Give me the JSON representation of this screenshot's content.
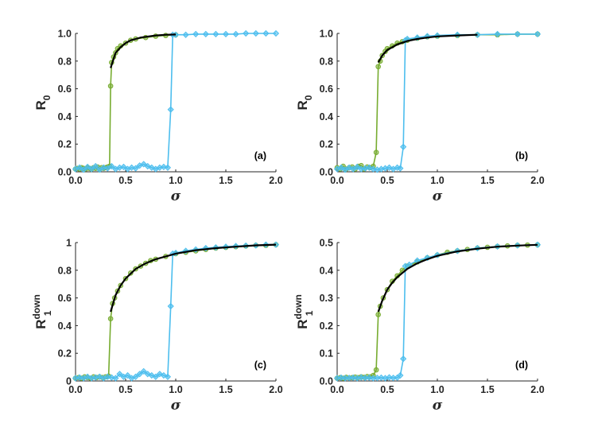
{
  "colors": {
    "green": "#77AC30",
    "blue": "#4DBEEE",
    "theory": "#000000",
    "axis": "#262626"
  },
  "chart_data": [
    {
      "type": "line",
      "panel_label": "(a)",
      "xlabel": "σ",
      "ylabel": {
        "base": "R",
        "sub": "0",
        "sup": ""
      },
      "xlim": [
        0,
        2
      ],
      "ylim": [
        0,
        1
      ],
      "xticks": [
        "0.0",
        "0.5",
        "1.0",
        "1.5",
        "2.0"
      ],
      "yticks": [
        "0.0",
        "0.2",
        "0.4",
        "0.6",
        "0.8",
        "1.0"
      ],
      "grid": false,
      "series": [
        {
          "color": "green",
          "marker": "circle",
          "x": [
            0,
            0.02,
            0.04,
            0.06,
            0.08,
            0.1,
            0.12,
            0.14,
            0.16,
            0.18,
            0.2,
            0.22,
            0.24,
            0.26,
            0.28,
            0.3,
            0.32,
            0.34,
            0.35,
            0.36,
            0.38,
            0.4,
            0.42,
            0.45,
            0.5,
            0.55,
            0.6,
            0.7,
            0.8,
            0.9,
            1.0
          ],
          "y": [
            0.02,
            0.025,
            0.02,
            0.03,
            0.025,
            0.02,
            0.03,
            0.025,
            0.02,
            0.03,
            0.025,
            0.035,
            0.02,
            0.03,
            0.025,
            0.03,
            0.035,
            0.04,
            0.62,
            0.79,
            0.83,
            0.86,
            0.89,
            0.91,
            0.93,
            0.95,
            0.96,
            0.97,
            0.98,
            0.985,
            0.99
          ]
        },
        {
          "color": "blue",
          "marker": "diamond",
          "x": [
            0,
            0.04,
            0.08,
            0.12,
            0.16,
            0.2,
            0.24,
            0.28,
            0.32,
            0.36,
            0.4,
            0.44,
            0.48,
            0.52,
            0.56,
            0.6,
            0.64,
            0.68,
            0.72,
            0.76,
            0.8,
            0.84,
            0.88,
            0.92,
            0.95,
            0.97,
            1.0,
            1.1,
            1.2,
            1.3,
            1.4,
            1.5,
            1.6,
            1.7,
            1.8,
            1.9,
            2.0
          ],
          "y": [
            0.02,
            0.03,
            0.015,
            0.035,
            0.02,
            0.04,
            0.015,
            0.03,
            0.025,
            0.04,
            0.02,
            0.03,
            0.035,
            0.02,
            0.03,
            0.025,
            0.045,
            0.055,
            0.04,
            0.03,
            0.02,
            0.03,
            0.035,
            0.03,
            0.45,
            0.99,
            0.99,
            0.99,
            0.995,
            0.995,
            0.995,
            0.995,
            0.995,
            1.0,
            1.0,
            1.0,
            1.0
          ]
        },
        {
          "color": "theory",
          "marker": "none",
          "x": [
            0.35,
            0.4,
            0.45,
            0.5,
            0.55,
            0.6,
            0.65,
            0.7,
            0.8,
            0.9,
            1.0
          ],
          "y": [
            0.75,
            0.86,
            0.9,
            0.93,
            0.95,
            0.96,
            0.97,
            0.975,
            0.985,
            0.99,
            0.992
          ]
        }
      ]
    },
    {
      "type": "line",
      "panel_label": "(b)",
      "xlabel": "σ",
      "ylabel": {
        "base": "R",
        "sub": "0",
        "sup": ""
      },
      "xlim": [
        0,
        2
      ],
      "ylim": [
        0,
        1
      ],
      "xticks": [
        "0.0",
        "0.5",
        "1.0",
        "1.5",
        "2.0"
      ],
      "yticks": [
        "0.0",
        "0.2",
        "0.4",
        "0.6",
        "0.8",
        "1.0"
      ],
      "grid": false,
      "series": [
        {
          "color": "green",
          "marker": "circle",
          "x": [
            0,
            0.03,
            0.06,
            0.09,
            0.12,
            0.15,
            0.18,
            0.21,
            0.24,
            0.27,
            0.3,
            0.33,
            0.36,
            0.39,
            0.41,
            0.43,
            0.45,
            0.48,
            0.5,
            0.55,
            0.6,
            0.65,
            0.7,
            0.8,
            0.9,
            1.0,
            1.2,
            1.4,
            1.6,
            1.8,
            2.0
          ],
          "y": [
            0.03,
            0.02,
            0.04,
            0.02,
            0.03,
            0.035,
            0.02,
            0.04,
            0.045,
            0.02,
            0.035,
            0.03,
            0.04,
            0.14,
            0.76,
            0.8,
            0.84,
            0.87,
            0.89,
            0.91,
            0.93,
            0.94,
            0.95,
            0.965,
            0.975,
            0.98,
            0.985,
            0.99,
            0.99,
            0.995,
            0.995
          ]
        },
        {
          "color": "blue",
          "marker": "diamond",
          "x": [
            0,
            0.04,
            0.08,
            0.12,
            0.16,
            0.2,
            0.24,
            0.28,
            0.32,
            0.36,
            0.4,
            0.44,
            0.48,
            0.52,
            0.56,
            0.6,
            0.63,
            0.66,
            0.68,
            0.7,
            0.8,
            0.9,
            1.0,
            1.2,
            1.4,
            1.6,
            1.8,
            2.0
          ],
          "y": [
            0.02,
            0.03,
            0.015,
            0.03,
            0.02,
            0.035,
            0.02,
            0.025,
            0.03,
            0.02,
            0.015,
            0.02,
            0.025,
            0.03,
            0.02,
            0.03,
            0.025,
            0.18,
            0.95,
            0.96,
            0.97,
            0.98,
            0.985,
            0.99,
            0.99,
            0.995,
            0.995,
            0.995
          ]
        },
        {
          "color": "theory",
          "marker": "none",
          "x": [
            0.41,
            0.45,
            0.5,
            0.55,
            0.6,
            0.7,
            0.8,
            0.9,
            1.0,
            1.2,
            1.4
          ],
          "y": [
            0.79,
            0.84,
            0.88,
            0.9,
            0.92,
            0.945,
            0.96,
            0.97,
            0.978,
            0.985,
            0.99
          ]
        }
      ]
    },
    {
      "type": "line",
      "panel_label": "(c)",
      "xlabel": "σ",
      "ylabel": {
        "base": "R",
        "sub": "1",
        "sup": "down"
      },
      "xlim": [
        0,
        2
      ],
      "ylim": [
        0,
        1
      ],
      "xticks": [
        "0.0",
        "0.5",
        "1.0",
        "1.5",
        "2.0"
      ],
      "yticks": [
        "0",
        "0.2",
        "0.4",
        "0.6",
        "0.8",
        "1"
      ],
      "grid": false,
      "series": [
        {
          "color": "green",
          "marker": "circle",
          "x": [
            0,
            0.03,
            0.06,
            0.09,
            0.12,
            0.15,
            0.18,
            0.21,
            0.24,
            0.27,
            0.3,
            0.33,
            0.35,
            0.37,
            0.39,
            0.42,
            0.45,
            0.5,
            0.55,
            0.6,
            0.65,
            0.7,
            0.75,
            0.8,
            0.9,
            1.0,
            1.1,
            1.2,
            1.3,
            1.4,
            1.5,
            1.6,
            1.7,
            1.8,
            1.9,
            2.0
          ],
          "y": [
            0.02,
            0.025,
            0.02,
            0.03,
            0.025,
            0.02,
            0.03,
            0.025,
            0.03,
            0.025,
            0.03,
            0.035,
            0.45,
            0.56,
            0.6,
            0.65,
            0.69,
            0.74,
            0.78,
            0.81,
            0.83,
            0.85,
            0.87,
            0.88,
            0.9,
            0.92,
            0.93,
            0.94,
            0.95,
            0.96,
            0.965,
            0.97,
            0.975,
            0.98,
            0.98,
            0.985
          ]
        },
        {
          "color": "blue",
          "marker": "diamond",
          "x": [
            0,
            0.04,
            0.08,
            0.12,
            0.16,
            0.2,
            0.24,
            0.28,
            0.32,
            0.36,
            0.4,
            0.44,
            0.48,
            0.52,
            0.56,
            0.6,
            0.64,
            0.68,
            0.72,
            0.76,
            0.8,
            0.84,
            0.88,
            0.92,
            0.95,
            0.97,
            1.0,
            1.1,
            1.2,
            1.3,
            1.4,
            1.5,
            1.6,
            1.7,
            1.8,
            1.9,
            2.0
          ],
          "y": [
            0.02,
            0.025,
            0.02,
            0.03,
            0.02,
            0.025,
            0.03,
            0.02,
            0.03,
            0.025,
            0.02,
            0.05,
            0.03,
            0.04,
            0.02,
            0.03,
            0.05,
            0.07,
            0.05,
            0.04,
            0.03,
            0.05,
            0.04,
            0.03,
            0.54,
            0.92,
            0.925,
            0.94,
            0.95,
            0.96,
            0.965,
            0.97,
            0.975,
            0.978,
            0.98,
            0.985,
            0.985
          ]
        },
        {
          "color": "theory",
          "marker": "none",
          "x": [
            0.35,
            0.4,
            0.45,
            0.5,
            0.6,
            0.7,
            0.8,
            0.9,
            1.0,
            1.2,
            1.4,
            1.6,
            1.8,
            2.0
          ],
          "y": [
            0.5,
            0.62,
            0.69,
            0.74,
            0.81,
            0.85,
            0.88,
            0.9,
            0.92,
            0.945,
            0.96,
            0.97,
            0.98,
            0.985
          ]
        }
      ]
    },
    {
      "type": "line",
      "panel_label": "(d)",
      "xlabel": "σ",
      "ylabel": {
        "base": "R",
        "sub": "1",
        "sup": "down"
      },
      "xlim": [
        0,
        2
      ],
      "ylim": [
        0,
        0.5
      ],
      "xticks": [
        "0.0",
        "0.5",
        "1.0",
        "1.5",
        "2.0"
      ],
      "yticks": [
        "0.0",
        "0.1",
        "0.2",
        "0.3",
        "0.4",
        "0.5"
      ],
      "grid": false,
      "series": [
        {
          "color": "green",
          "marker": "circle",
          "x": [
            0,
            0.03,
            0.06,
            0.09,
            0.12,
            0.15,
            0.18,
            0.21,
            0.24,
            0.27,
            0.3,
            0.33,
            0.36,
            0.39,
            0.41,
            0.43,
            0.46,
            0.5,
            0.55,
            0.6,
            0.65,
            0.7,
            0.8,
            0.9,
            1.0,
            1.1,
            1.2,
            1.3,
            1.4,
            1.5,
            1.6,
            1.7,
            1.8,
            1.9,
            2.0
          ],
          "y": [
            0.01,
            0.012,
            0.01,
            0.013,
            0.011,
            0.012,
            0.014,
            0.012,
            0.015,
            0.013,
            0.016,
            0.015,
            0.02,
            0.04,
            0.24,
            0.27,
            0.3,
            0.33,
            0.36,
            0.38,
            0.4,
            0.415,
            0.43,
            0.445,
            0.455,
            0.465,
            0.47,
            0.475,
            0.48,
            0.483,
            0.486,
            0.488,
            0.49,
            0.491,
            0.492
          ]
        },
        {
          "color": "blue",
          "marker": "diamond",
          "x": [
            0,
            0.04,
            0.08,
            0.12,
            0.16,
            0.2,
            0.24,
            0.28,
            0.32,
            0.36,
            0.4,
            0.44,
            0.48,
            0.52,
            0.56,
            0.6,
            0.63,
            0.66,
            0.68,
            0.72,
            0.8,
            0.9,
            1.0,
            1.2,
            1.4,
            1.6,
            1.8,
            2.0
          ],
          "y": [
            0.01,
            0.012,
            0.01,
            0.011,
            0.012,
            0.01,
            0.013,
            0.011,
            0.012,
            0.01,
            0.011,
            0.012,
            0.01,
            0.013,
            0.011,
            0.012,
            0.02,
            0.08,
            0.415,
            0.42,
            0.435,
            0.445,
            0.455,
            0.47,
            0.48,
            0.486,
            0.49,
            0.492
          ]
        },
        {
          "color": "theory",
          "marker": "none",
          "x": [
            0.41,
            0.45,
            0.5,
            0.55,
            0.6,
            0.7,
            0.8,
            0.9,
            1.0,
            1.2,
            1.4,
            1.6,
            1.8,
            2.0
          ],
          "y": [
            0.25,
            0.29,
            0.33,
            0.355,
            0.375,
            0.405,
            0.425,
            0.44,
            0.452,
            0.468,
            0.478,
            0.485,
            0.489,
            0.492
          ]
        }
      ]
    }
  ]
}
